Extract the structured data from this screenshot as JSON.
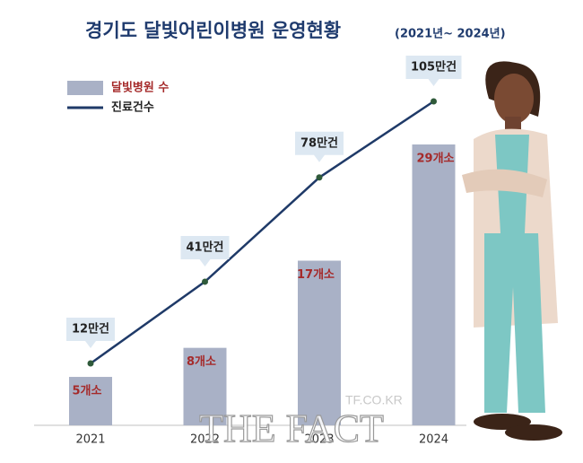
{
  "chart_data": {
    "type": "bar-line",
    "title": "경기도 달빛어린이병원 운영현황",
    "subtitle": "(2021년~ 2024년)",
    "categories": [
      "2021",
      "2022",
      "2023",
      "2024"
    ],
    "series": [
      {
        "name": "달빛병원 수",
        "type": "bar",
        "color": "#a9b1c6",
        "label_color": "#a52a2a",
        "values": [
          5,
          8,
          17,
          29
        ],
        "value_labels": [
          "5개소",
          "8개소",
          "17개소",
          "29개소"
        ]
      },
      {
        "name": "진료건수",
        "type": "line",
        "color": "#1f3a68",
        "values": [
          12,
          41,
          78,
          105
        ],
        "value_labels": [
          "12만건",
          "41만건",
          "78만건",
          "105만건"
        ]
      }
    ],
    "watermark": [
      "TF.CO.KR",
      "THE FACT"
    ]
  }
}
